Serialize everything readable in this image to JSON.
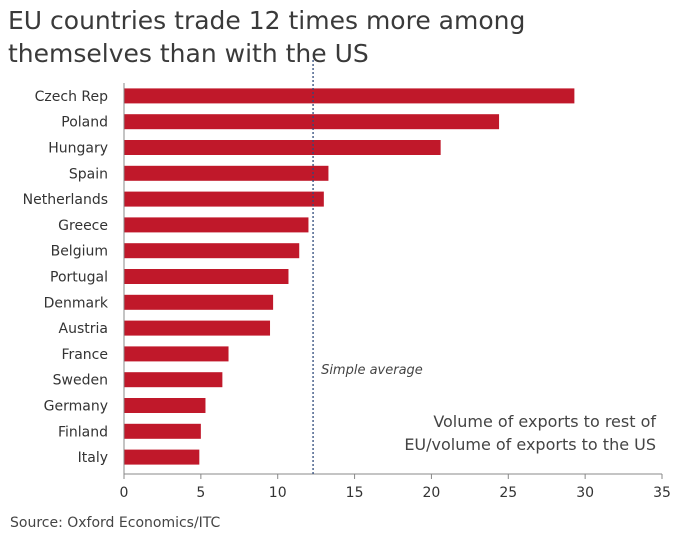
{
  "chart_data": {
    "type": "bar",
    "orientation": "horizontal",
    "title": "EU countries trade 12 times more among themselves than with the US",
    "categories": [
      "Czech Rep",
      "Poland",
      "Hungary",
      "Spain",
      "Netherlands",
      "Greece",
      "Belgium",
      "Portugal",
      "Denmark",
      "Austria",
      "France",
      "Sweden",
      "Germany",
      "Finland",
      "Italy"
    ],
    "values": [
      29.3,
      24.4,
      20.6,
      13.3,
      13.0,
      12.0,
      11.4,
      10.7,
      9.7,
      9.5,
      6.8,
      6.4,
      5.3,
      5.0,
      4.9
    ],
    "xlim": [
      0,
      35
    ],
    "xticks": [
      0,
      5,
      10,
      15,
      20,
      25,
      30,
      35
    ],
    "reference_line": {
      "value": 12.3,
      "label": "Simple average",
      "style": "dotted"
    },
    "annotation": [
      "Volume of exports to rest of",
      "EU/volume of exports to the US"
    ],
    "bar_color": "#c0182a",
    "xlabel": "",
    "ylabel": ""
  },
  "source": "Source: Oxford Economics/ITC"
}
